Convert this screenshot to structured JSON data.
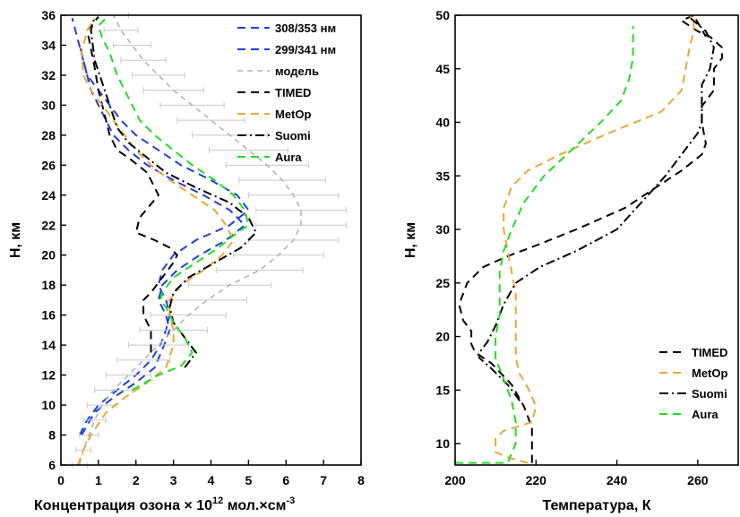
{
  "chart_data": [
    {
      "type": "line",
      "title": "",
      "xlabel_main": "Концентрация озона × 10",
      "xlabel_exp": "12",
      "xlabel_units": " мол.×см",
      "xlabel_units_exp": "-3",
      "ylabel": "H, км",
      "xlim": [
        0,
        8
      ],
      "ylim": [
        6,
        36
      ],
      "x_ticks": [
        "0",
        "1",
        "2",
        "3",
        "4",
        "5",
        "6",
        "7",
        "8"
      ],
      "y_ticks": [
        "6",
        "8",
        "10",
        "12",
        "14",
        "16",
        "18",
        "20",
        "22",
        "24",
        "26",
        "28",
        "30",
        "32",
        "34",
        "36"
      ],
      "legend_position": "top-right",
      "series": [
        {
          "name": "308/353 нм",
          "color": "#1f3fd8",
          "dash": "9 6",
          "x": [
            0.5,
            0.7,
            1.0,
            1.5,
            2.0,
            2.4,
            2.65,
            2.8,
            2.9,
            2.8,
            2.6,
            2.7,
            3.0,
            3.6,
            4.5,
            5.0,
            4.7,
            4.0,
            3.2,
            2.6,
            2.0,
            1.6,
            1.3,
            1.0,
            0.7,
            0.3
          ],
          "y": [
            8,
            9,
            10,
            11,
            12,
            13,
            14,
            15,
            16,
            17,
            18,
            19,
            20,
            21,
            22,
            23,
            24,
            25,
            26,
            27,
            28,
            29,
            30,
            31,
            32,
            35.8
          ]
        },
        {
          "name": "299/341 нм",
          "color": "#1f3fd8",
          "dash": "9 6",
          "x": [
            0.55,
            0.9,
            1.4,
            2.0,
            2.5,
            2.75,
            2.9,
            2.8,
            2.6,
            2.7,
            3.1,
            3.7,
            4.4,
            4.9,
            4.5,
            3.8,
            3.0,
            2.3,
            1.8,
            1.4,
            1.1,
            0.8,
            0.5
          ],
          "y": [
            8,
            9.5,
            10.5,
            11.5,
            12.5,
            14,
            15,
            16,
            17,
            18,
            19,
            20,
            21,
            22,
            23,
            24,
            25,
            26,
            27,
            28,
            29.5,
            31,
            34
          ]
        },
        {
          "name": "модель",
          "color": "#b4b4b4",
          "dash": "6 5",
          "width": 1.6,
          "x": [
            0.5,
            0.6,
            0.75,
            0.9,
            1.1,
            1.4,
            1.8,
            2.2,
            2.6,
            3.0,
            3.4,
            3.9,
            4.5,
            5.3,
            5.8,
            6.2,
            6.4,
            6.4,
            6.2,
            5.9,
            5.5,
            5.0,
            4.5,
            4.0,
            3.5,
            3.0,
            2.6,
            2.2,
            1.9,
            1.6,
            1.4
          ],
          "x_err": [
            0.2,
            0.2,
            0.25,
            0.3,
            0.4,
            0.5,
            0.6,
            0.7,
            0.8,
            0.9,
            1.0,
            1.05,
            1.1,
            1.15,
            1.2,
            1.2,
            1.2,
            1.2,
            1.2,
            1.15,
            1.1,
            1.05,
            1.0,
            0.9,
            0.85,
            0.8,
            0.7,
            0.6,
            0.5,
            0.45,
            0.4
          ],
          "y": [
            6,
            7,
            8,
            9,
            10,
            11,
            12,
            13,
            14,
            15,
            16,
            17,
            18,
            19,
            20,
            21,
            22,
            23,
            24,
            25,
            26,
            27,
            28,
            29,
            30,
            31,
            32,
            33,
            34,
            35,
            36
          ]
        },
        {
          "name": "TIMED",
          "color": "#000000",
          "dash": "9 6",
          "x": [
            2.4,
            2.4,
            2.2,
            2.2,
            2.4,
            2.7,
            3.0,
            3.1,
            2.9,
            2.5,
            2.0,
            2.1,
            2.6,
            2.3,
            1.8,
            1.5,
            1.3,
            1.2,
            1.0,
            0.9,
            0.7,
            1.0
          ],
          "y": [
            13.5,
            15,
            16,
            17,
            17.5,
            18.5,
            19.5,
            20,
            20.5,
            21,
            21.5,
            22.5,
            24,
            25.5,
            26.5,
            27,
            28,
            29,
            31,
            32.5,
            35,
            35.9
          ]
        },
        {
          "name": "MetOp",
          "color": "#e8a73a",
          "dash": "9 6",
          "x": [
            0.45,
            0.6,
            0.8,
            1.2,
            1.7,
            2.3,
            2.8,
            3.0,
            3.0,
            2.9,
            2.9,
            3.2,
            3.8,
            4.3,
            4.6,
            4.4,
            4.1,
            3.5,
            2.9,
            2.4,
            2.0,
            1.7,
            1.4,
            1.1,
            0.8,
            0.6,
            0.55,
            0.7,
            0.9
          ],
          "y": [
            6,
            7,
            8,
            9.5,
            10.5,
            11.5,
            12.5,
            14,
            15,
            16,
            17,
            18,
            19,
            20,
            21,
            22,
            23,
            24,
            25,
            26,
            27,
            28,
            29,
            30,
            31,
            32,
            33.5,
            35,
            35.8
          ]
        },
        {
          "name": "Suomi",
          "color": "#000000",
          "dash": "10 4 2 4",
          "x": [
            3.3,
            3.6,
            3.3,
            3.0,
            2.9,
            3.0,
            3.4,
            4.1,
            4.8,
            5.2,
            5.0,
            4.5,
            3.6,
            2.8,
            2.3,
            1.8,
            1.5,
            1.3,
            1.1,
            0.9,
            0.8,
            0.9
          ],
          "y": [
            12.5,
            13.5,
            14.5,
            15.5,
            16.5,
            17.5,
            18.5,
            19.5,
            20.5,
            21.5,
            22.5,
            23.5,
            24.5,
            25.5,
            26.5,
            27.5,
            28.5,
            30,
            31.5,
            33,
            35,
            35.9
          ]
        },
        {
          "name": "Aura",
          "color": "#22dd22",
          "dash": "9 6",
          "x": [
            1.9,
            2.6,
            3.2,
            3.5,
            3.3,
            3.0,
            2.8,
            2.65,
            2.7,
            3.0,
            3.6,
            4.2,
            4.7,
            5.0,
            4.9,
            4.6,
            4.1,
            3.5,
            3.0,
            2.5,
            2.1,
            1.8,
            1.5,
            1.3,
            1.1,
            1.0,
            1.2
          ],
          "y": [
            11,
            12,
            12.6,
            13.5,
            14.5,
            15.5,
            16.5,
            17,
            17.5,
            18.5,
            19.5,
            20.5,
            21.5,
            22,
            23,
            24,
            25,
            26,
            27,
            28,
            29,
            30.5,
            32,
            33.5,
            34.5,
            35.3,
            35.8
          ]
        }
      ]
    },
    {
      "type": "line",
      "title": "",
      "xlabel": "Температура, К",
      "ylabel": "H, км",
      "xlim": [
        200,
        270
      ],
      "ylim": [
        8,
        50
      ],
      "x_ticks": [
        "200",
        "220",
        "240",
        "260"
      ],
      "y_ticks": [
        "10",
        "15",
        "20",
        "25",
        "30",
        "35",
        "40",
        "45",
        "50"
      ],
      "legend_position": "bottom-right",
      "series": [
        {
          "name": "TIMED",
          "color": "#000000",
          "dash": "9 6",
          "x": [
            219,
            219,
            219,
            217,
            214,
            209,
            205,
            204,
            204,
            202,
            201,
            203,
            207,
            213,
            220,
            230,
            242,
            250,
            256,
            261,
            262,
            261,
            261,
            264,
            264,
            266,
            266,
            263,
            260,
            256,
            259,
            262
          ],
          "y": [
            8.2,
            9.5,
            11.5,
            13.5,
            15.5,
            17.5,
            18.5,
            19.3,
            20.5,
            21.5,
            23,
            25,
            26.5,
            27.5,
            28.5,
            30,
            32,
            34,
            35.5,
            37,
            38,
            40,
            41.5,
            43,
            45,
            46,
            47,
            48,
            48.5,
            49.5,
            50,
            48
          ]
        },
        {
          "name": "MetOp",
          "color": "#e8a73a",
          "dash": "9 6",
          "x": [
            218,
            214,
            210,
            210,
            212,
            219,
            220,
            218,
            216,
            215,
            215,
            215,
            215,
            214,
            213,
            212,
            212,
            214,
            218,
            226,
            238,
            251,
            256,
            257,
            258,
            259,
            259,
            258
          ],
          "y": [
            8.2,
            8.6,
            9.2,
            10.5,
            11.2,
            12,
            13.5,
            15.2,
            16.5,
            18,
            20,
            22,
            24,
            26,
            28,
            30,
            32,
            34,
            35.5,
            37,
            39,
            41,
            43,
            45,
            47,
            48.5,
            49.5,
            50
          ]
        },
        {
          "name": "Suomi",
          "color": "#000000",
          "dash": "10 4 2 4",
          "x": [
            216,
            213,
            209,
            206,
            206,
            208,
            210,
            212,
            215,
            221,
            230,
            240,
            246,
            252,
            256,
            260,
            261,
            261,
            261,
            263,
            264,
            262,
            258
          ],
          "y": [
            14,
            15.5,
            17,
            18,
            18.5,
            19.5,
            21,
            23,
            25,
            26.5,
            28,
            30,
            32.5,
            35,
            37,
            39,
            40,
            42,
            43.5,
            45,
            47,
            48.5,
            49.8
          ]
        },
        {
          "name": "Aura",
          "color": "#22dd22",
          "dash": "9 6",
          "x": [
            200,
            206,
            213,
            215,
            215,
            214,
            212,
            210,
            210,
            211,
            211,
            211,
            212,
            214,
            217,
            222,
            229,
            236,
            241,
            243,
            244,
            244,
            244
          ],
          "y": [
            8.2,
            8.2,
            8.2,
            10,
            12,
            14,
            16,
            18,
            20,
            22,
            24,
            26,
            28,
            30,
            32.5,
            35,
            37.5,
            40,
            42,
            44,
            46,
            47.5,
            49
          ]
        }
      ]
    }
  ]
}
